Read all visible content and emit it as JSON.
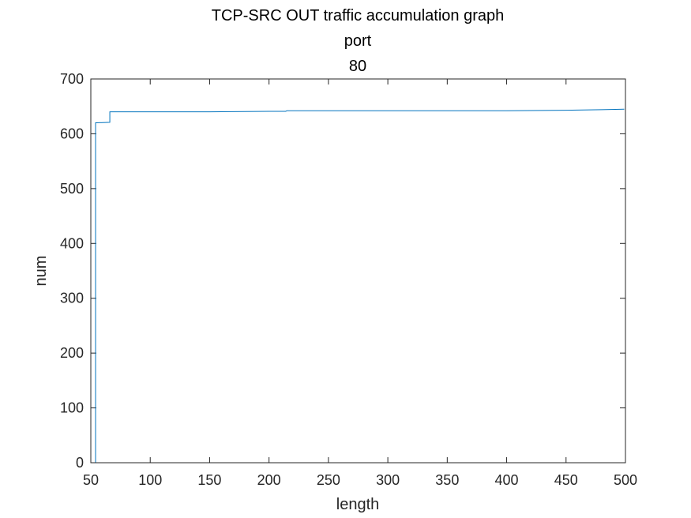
{
  "chart_data": {
    "type": "line",
    "title": "TCP-SRC OUT traffic accumulation graph",
    "subtitle_lines": [
      "port",
      "80"
    ],
    "xlabel": "length",
    "ylabel": "num",
    "xlim": [
      50,
      500
    ],
    "ylim": [
      0,
      700
    ],
    "xticks": [
      50,
      100,
      150,
      200,
      250,
      300,
      350,
      400,
      450,
      500
    ],
    "yticks": [
      0,
      100,
      200,
      300,
      400,
      500,
      600,
      700
    ],
    "grid": false,
    "line_color": "#0072BD",
    "series": [
      {
        "x": [
          54,
          54,
          55,
          66,
          66,
          67,
          100,
          150,
          200,
          214,
          215,
          250,
          300,
          350,
          400,
          450,
          480,
          499
        ],
        "y": [
          0,
          620,
          620,
          621,
          640,
          640,
          640,
          640,
          641,
          641,
          642,
          642,
          642,
          642,
          642,
          643,
          644,
          645
        ]
      }
    ]
  }
}
